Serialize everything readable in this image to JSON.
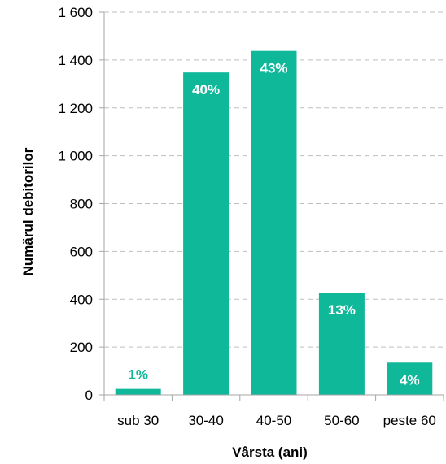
{
  "chart_data": {
    "type": "bar",
    "title": "",
    "xlabel": "Vârsta (ani)",
    "ylabel": "Numărul debitorilor",
    "categories": [
      "sub 30",
      "30-40",
      "40-50",
      "50-60",
      "peste 60"
    ],
    "values": [
      25,
      1348,
      1438,
      428,
      135
    ],
    "data_labels": [
      "1%",
      "40%",
      "43%",
      "13%",
      "4%"
    ],
    "ylim": [
      0,
      1600
    ],
    "yticks": [
      0,
      200,
      400,
      600,
      800,
      1000,
      1200,
      1400,
      1600
    ],
    "ytick_labels": [
      "0",
      "200",
      "400",
      "600",
      "800",
      "1 000",
      "1 200",
      "1 400",
      "1 600"
    ],
    "grid": true,
    "legend": "none",
    "colors": {
      "bar": "#10B89A",
      "label_inside": "#ffffff",
      "label_outside": "#10B89A",
      "grid": "#bfbfbf",
      "axis": "#a6a6a6"
    }
  }
}
